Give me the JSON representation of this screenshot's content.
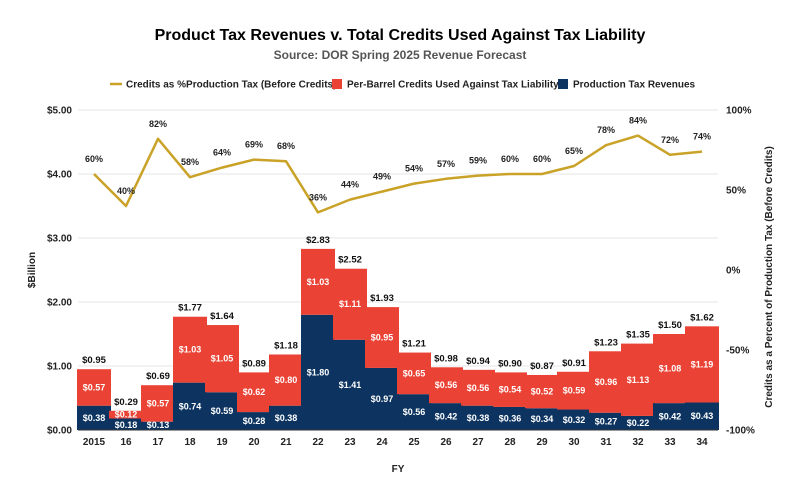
{
  "chart_data": {
    "type": "bar",
    "title": "Product Tax Revenues v. Total Credits Used Against Tax Liability",
    "subtitle": "Source: DOR Spring 2025 Revenue Forecast",
    "xlabel": "FY",
    "ylabel": "$Billion",
    "y2label": "Credits as a Percent of Production Tax (Before Credits)",
    "categories": [
      "2015",
      "16",
      "17",
      "18",
      "19",
      "20",
      "21",
      "22",
      "23",
      "24",
      "25",
      "26",
      "27",
      "28",
      "29",
      "30",
      "31",
      "32",
      "33",
      "34"
    ],
    "yticks": [
      "$0.00",
      "$1.00",
      "$2.00",
      "$3.00",
      "$4.00",
      "$5.00"
    ],
    "y2ticks": [
      "-100%",
      "-50%",
      "0%",
      "50%",
      "100%"
    ],
    "ylim": [
      0,
      5
    ],
    "y2lim": [
      -100,
      100
    ],
    "legend_position": "top",
    "grid": true,
    "colors": {
      "revenue": "#0d3461",
      "credits": "#ea4335",
      "line": "#c9a227",
      "grid": "#e6e6e6"
    },
    "legend": [
      {
        "name": "Credits as %Production Tax (Before Credits)",
        "type": "line"
      },
      {
        "name": "Per-Barrel Credits Used Against Tax Liability",
        "type": "bar-credits"
      },
      {
        "name": "Production Tax Revenues",
        "type": "bar-revenue"
      }
    ],
    "series": [
      {
        "name": "Production Tax Revenues",
        "values": [
          0.38,
          0.18,
          0.13,
          0.74,
          0.59,
          0.28,
          0.38,
          1.8,
          1.41,
          0.97,
          0.56,
          0.42,
          0.38,
          0.36,
          0.34,
          0.32,
          0.27,
          0.22,
          0.42,
          0.43
        ],
        "labels": [
          "$0.38",
          "$0.18",
          "$0.13",
          "$0.74",
          "$0.59",
          "$0.28",
          "$0.38",
          "$1.80",
          "$1.41",
          "$0.97",
          "$0.56",
          "$0.42",
          "$0.38",
          "$0.36",
          "$0.34",
          "$0.32",
          "$0.27",
          "$0.22",
          "$0.42",
          "$0.43"
        ]
      },
      {
        "name": "Per-Barrel Credits Used Against Tax Liability",
        "values": [
          0.57,
          0.12,
          0.57,
          1.03,
          1.05,
          0.62,
          0.8,
          1.03,
          1.11,
          0.95,
          0.65,
          0.56,
          0.56,
          0.54,
          0.52,
          0.59,
          0.96,
          1.13,
          1.08,
          1.19
        ],
        "labels": [
          "$0.57",
          "$0.12",
          "$0.57",
          "$1.03",
          "$1.05",
          "$0.62",
          "$0.80",
          "$1.03",
          "$1.11",
          "$0.95",
          "$0.65",
          "$0.56",
          "$0.56",
          "$0.54",
          "$0.52",
          "$0.59",
          "$0.96",
          "$1.13",
          "$1.08",
          "$1.19"
        ]
      },
      {
        "name": "Credits as %Production Tax (Before Credits)",
        "values": [
          60,
          40,
          82,
          58,
          64,
          69,
          68,
          36,
          44,
          49,
          54,
          57,
          59,
          60,
          60,
          65,
          78,
          84,
          72,
          74
        ],
        "labels": [
          "60%",
          "40%",
          "82%",
          "58%",
          "64%",
          "69%",
          "68%",
          "36%",
          "44%",
          "49%",
          "54%",
          "57%",
          "59%",
          "60%",
          "60%",
          "65%",
          "78%",
          "84%",
          "72%",
          "74%"
        ]
      }
    ],
    "totals": [
      0.95,
      0.29,
      0.69,
      1.77,
      1.64,
      0.89,
      1.18,
      2.83,
      2.52,
      1.93,
      1.21,
      0.98,
      0.94,
      0.9,
      0.87,
      0.91,
      1.23,
      1.35,
      1.5,
      1.62
    ],
    "total_labels": [
      "$0.95",
      "$0.29",
      "$0.69",
      "$1.77",
      "$1.64",
      "$0.89",
      "$1.18",
      "$2.83",
      "$2.52",
      "$1.93",
      "$1.21",
      "$0.98",
      "$0.94",
      "$0.90",
      "$0.87",
      "$0.91",
      "$1.23",
      "$1.35",
      "$1.50",
      "$1.62"
    ]
  }
}
